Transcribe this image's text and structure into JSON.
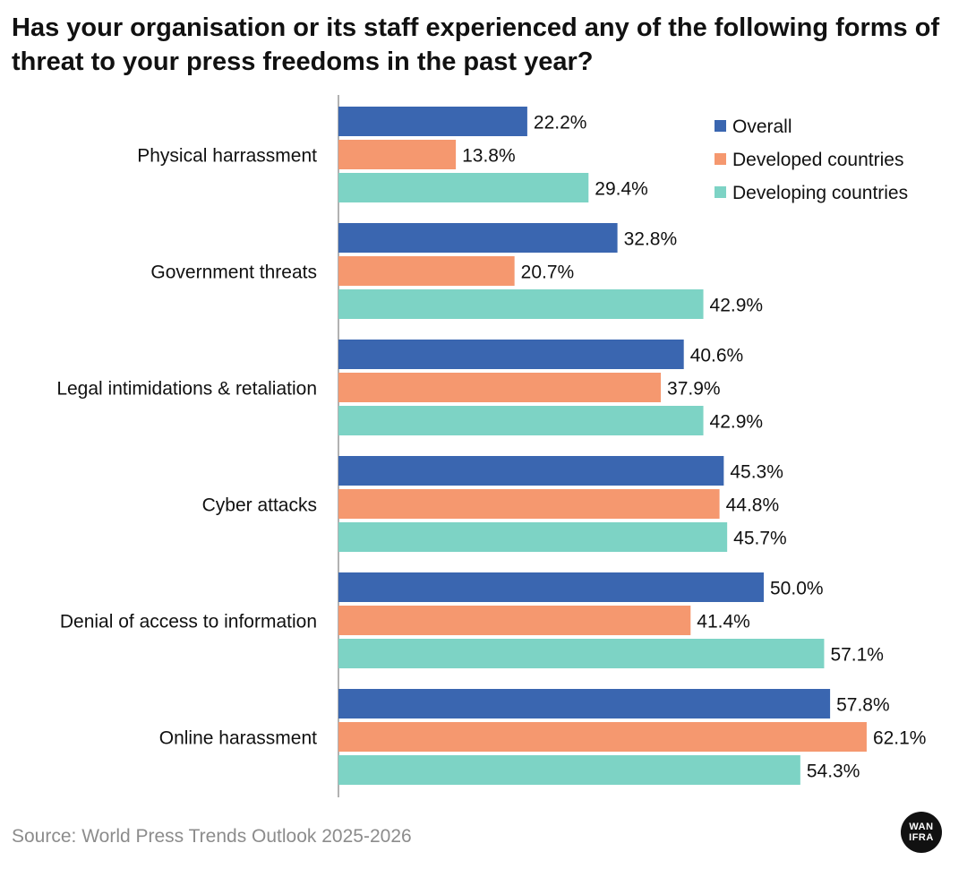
{
  "chart_data": {
    "type": "bar",
    "orientation": "horizontal",
    "title": "Has your organisation or its staff experienced any of the following forms of threat to your press freedoms in the past year?",
    "categories": [
      "Physical harrassment",
      "Government threats",
      "Legal intimidations & retaliation",
      "Cyber attacks",
      "Denial of access to information",
      "Online harassment"
    ],
    "series": [
      {
        "name": "Overall",
        "color": "#3a66b0",
        "values": [
          22.2,
          32.8,
          40.6,
          45.3,
          50.0,
          57.8
        ]
      },
      {
        "name": "Developed countries",
        "color": "#f5986f",
        "values": [
          13.8,
          20.7,
          37.9,
          44.8,
          41.4,
          62.1
        ]
      },
      {
        "name": "Developing countries",
        "color": "#7dd3c5",
        "values": [
          29.4,
          42.9,
          42.9,
          45.7,
          57.1,
          54.3
        ]
      }
    ],
    "value_format": "percent_one_decimal",
    "legend_position": "top-right",
    "grid": false,
    "xlim": [
      0,
      62.1
    ]
  },
  "source": "Source: World Press Trends Outlook 2025-2026",
  "logo": {
    "name": "wan-ifra-logo",
    "line1": "WAN",
    "line2": "IFRA"
  }
}
